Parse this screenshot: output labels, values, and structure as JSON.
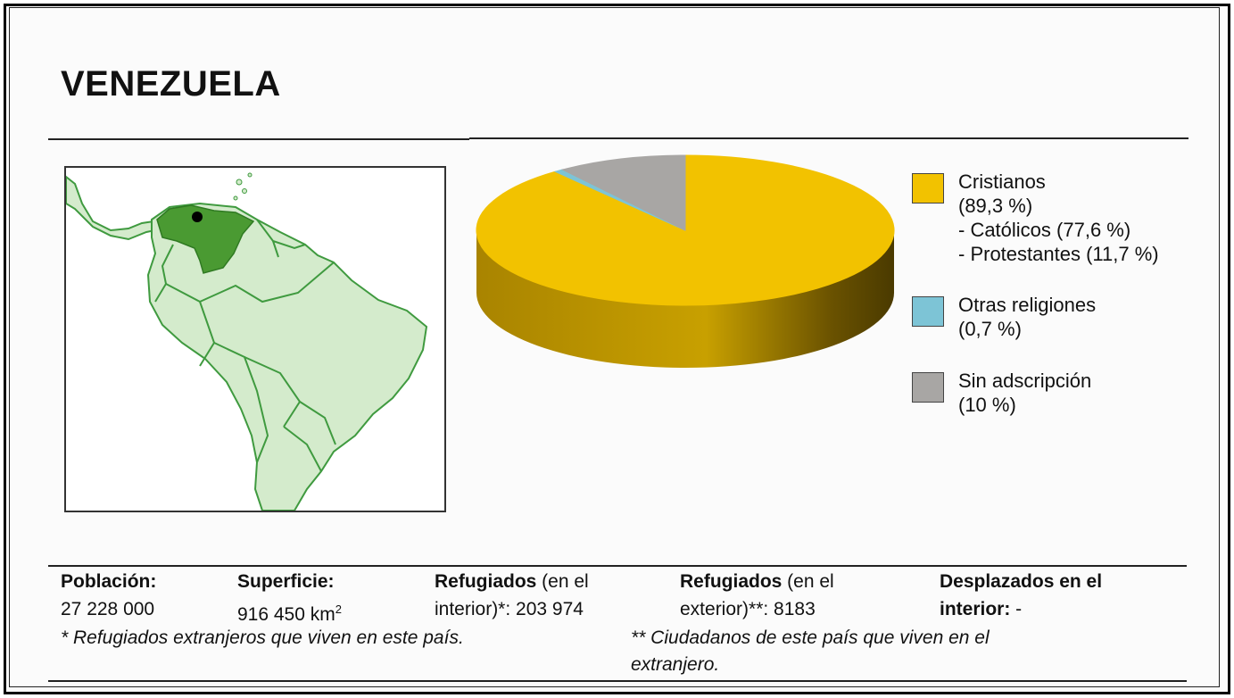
{
  "title": "VENEZUELA",
  "chart_data": {
    "type": "pie",
    "style": "3d",
    "slices": [
      {
        "label": "Cristianos",
        "percent_text": "(89,3 %)",
        "value": 89.3,
        "color": "#f2c200",
        "sub": [
          "- Católicos (77,6 %)",
          "- Protestantes (11,7 %)"
        ]
      },
      {
        "label": "Otras religiones",
        "percent_text": "(0,7 %)",
        "value": 0.7,
        "color": "#7dc4d6",
        "sub": []
      },
      {
        "label": "Sin adscripción",
        "percent_text": "(10 %)",
        "value": 10,
        "color": "#a8a6a4",
        "sub": []
      }
    ],
    "legend_position": "right"
  },
  "map": {
    "land_color": "#d4ebcc",
    "highlight_color": "#4a9a32",
    "border_color": "#3f9a3f",
    "capital_icon": "capital-dot-icon"
  },
  "stats": {
    "poblacion": {
      "label": "Población:",
      "value": "27 228 000"
    },
    "superficie": {
      "label": "Superficie:",
      "value": "916 450 km",
      "sup": "2"
    },
    "refugiados_int": {
      "label": "Refugiados",
      "label_rest": " (en el",
      "line2_a": "interior)*:",
      "line2_b": " 203 974"
    },
    "refugiados_ext": {
      "label": "Refugiados",
      "label_rest": " (en el",
      "line2_a": "exterior)**:",
      "line2_b": " 8183"
    },
    "desplazados": {
      "label": "Desplazados en el",
      "line2_a": "interior:",
      "line2_b": " -"
    }
  },
  "notes": {
    "note1": "* Refugiados extranjeros que viven en este país.",
    "note2_line1": "** Ciudadanos de este país que viven en el",
    "note2_line2": "extranjero."
  }
}
